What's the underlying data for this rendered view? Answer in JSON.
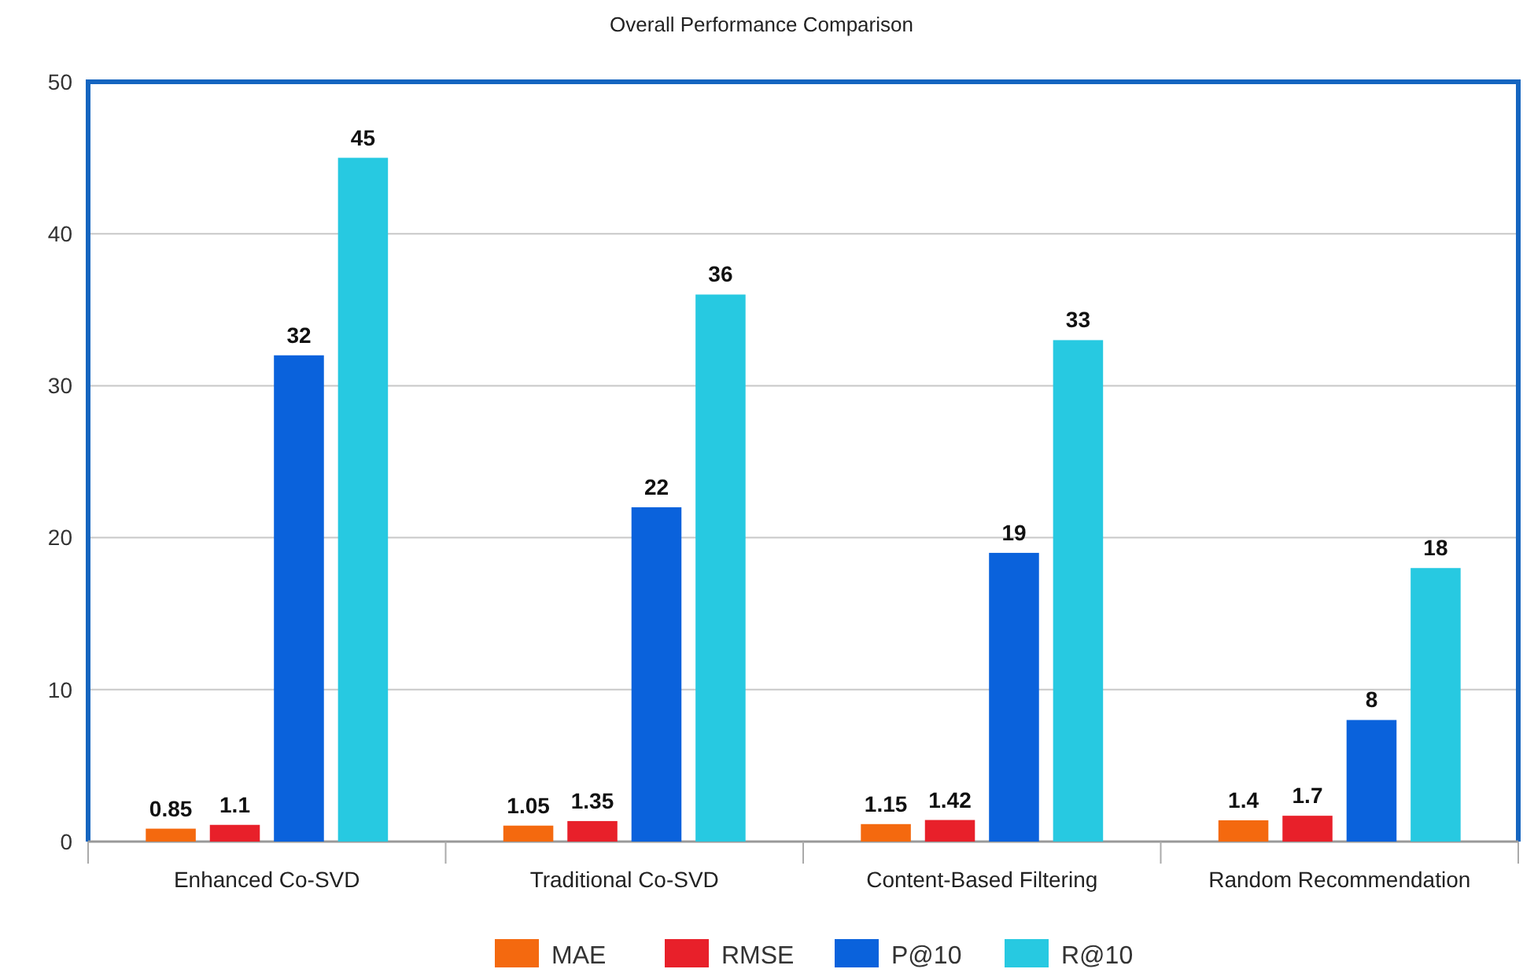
{
  "chart_data": {
    "type": "bar",
    "title": "Overall Performance Comparison",
    "categories": [
      "Enhanced Co-SVD",
      "Traditional Co-SVD",
      "Content-Based Filtering",
      "Random Recommendation"
    ],
    "series": [
      {
        "name": "MAE",
        "color": "#f4690f",
        "values": [
          0.85,
          1.05,
          1.15,
          1.4
        ]
      },
      {
        "name": "RMSE",
        "color": "#e8202a",
        "values": [
          1.1,
          1.35,
          1.42,
          1.7
        ]
      },
      {
        "name": "P@10",
        "color": "#0a62dc",
        "values": [
          32,
          22,
          19,
          8
        ]
      },
      {
        "name": "R@10",
        "color": "#27c9e1",
        "values": [
          45,
          36,
          33,
          18
        ]
      }
    ],
    "ylim": [
      0,
      50
    ],
    "yticks": [
      0,
      10,
      20,
      30,
      40,
      50
    ],
    "grid": "y",
    "legend": "bottom",
    "data_labels": true
  }
}
